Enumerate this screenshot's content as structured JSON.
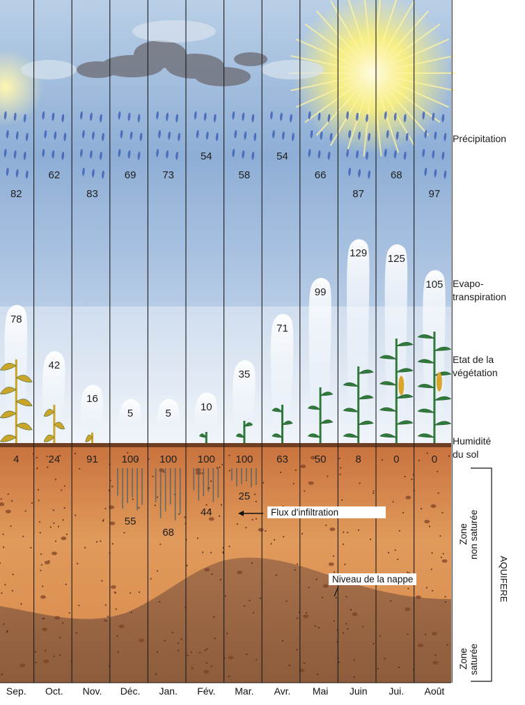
{
  "months": [
    "Sep.",
    "Oct.",
    "Nov.",
    "Déc.",
    "Jan.",
    "Fév.",
    "Mar.",
    "Avr.",
    "Mai",
    "Juin",
    "Jui.",
    "Août"
  ],
  "rows": {
    "precipitation": {
      "label": "Précipitation",
      "values": [
        "82",
        "62",
        "83",
        "69",
        "73",
        "54",
        "58",
        "54",
        "66",
        "87",
        "68",
        "97"
      ]
    },
    "evapotranspiration": {
      "label": "Evapo-\ntranspiration",
      "values": [
        "78",
        "42",
        "16",
        "5",
        "5",
        "10",
        "35",
        "71",
        "99",
        "129",
        "125",
        "105"
      ]
    },
    "vegetation": {
      "label": "Etat de la\nvégétation"
    },
    "soil_moisture": {
      "label": "Humidité\ndu sol",
      "values": [
        "4",
        "24",
        "91",
        "100",
        "100",
        "100",
        "100",
        "63",
        "50",
        "8",
        "0",
        "0"
      ]
    }
  },
  "infiltration": {
    "label": "Flux d'infiltration",
    "values": [
      {
        "month": "Déc.",
        "value": "55"
      },
      {
        "month": "Jan.",
        "value": "68"
      },
      {
        "month": "Fév.",
        "value": "44"
      },
      {
        "month": "Mar.",
        "value": "25"
      }
    ]
  },
  "water_table_label": "Niveau de la nappe",
  "zones": {
    "unsaturated": "Zone\nnon saturée",
    "saturated": "Zone\nsaturée",
    "aquifer": "AQUIFERE"
  },
  "colors": {
    "sky": "#8fb0d8",
    "soil": "#d98a4c",
    "saturated_soil": "#9c6b48",
    "drop": "#3f63b8",
    "plant": "#2f7a3b",
    "dry_plant": "#c9a52a",
    "sun": "#fff27a"
  }
}
